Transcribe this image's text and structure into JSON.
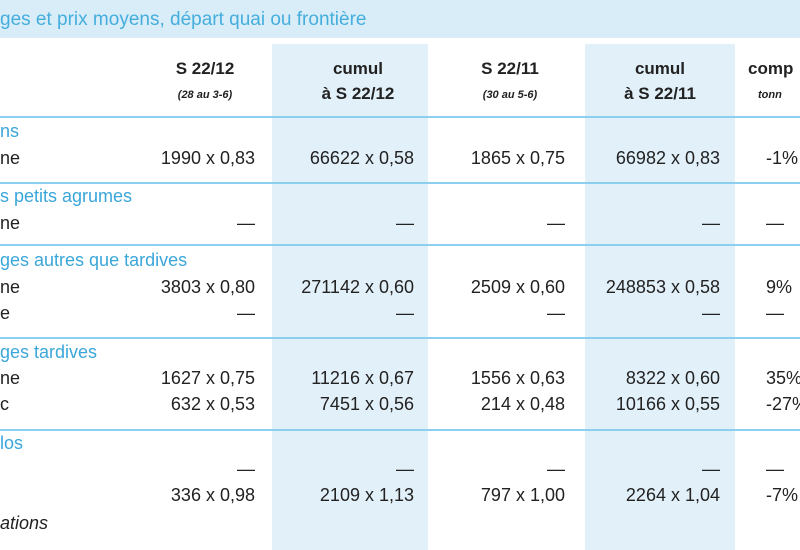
{
  "title": "ges et prix moyens, départ quai ou frontière",
  "headers": [
    {
      "lines": [
        "S 22/12",
        "(28 au 3-6)"
      ]
    },
    {
      "lines": [
        "cumul",
        "à S 22/12"
      ]
    },
    {
      "lines": [
        "S 22/11",
        "(30 au 5-6)"
      ]
    },
    {
      "lines": [
        "cumul",
        "à S 22/11"
      ]
    },
    {
      "lines": [
        "comp",
        "tonn"
      ]
    }
  ],
  "sections": [
    {
      "label": "ns",
      "rows": [
        {
          "label": "ne",
          "cells": [
            "1990 x 0,83",
            "66622 x 0,58",
            "1865 x 0,75",
            "66982 x 0,83",
            "-1%"
          ]
        }
      ]
    },
    {
      "label": "s petits agrumes",
      "rows": [
        {
          "label": "ne",
          "cells": [
            "—",
            "—",
            "—",
            "—",
            "—"
          ]
        }
      ]
    },
    {
      "label": "ges autres que tardives",
      "rows": [
        {
          "label": "ne",
          "cells": [
            "3803 x 0,80",
            "271142 x 0,60",
            "2509 x 0,60",
            "248853 x 0,58",
            "9%"
          ]
        },
        {
          "label": "e",
          "cells": [
            "—",
            "—",
            "—",
            "—",
            "—"
          ]
        }
      ]
    },
    {
      "label": "ges tardives",
      "rows": [
        {
          "label": "ne",
          "cells": [
            "1627 x 0,75",
            "11216 x 0,67",
            "1556 x 0,63",
            "8322 x 0,60",
            "35%"
          ]
        },
        {
          "label": "c",
          "cells": [
            "632 x 0,53",
            "7451 x 0,56",
            "214 x 0,48",
            "10166 x 0,55",
            "-27%"
          ]
        }
      ]
    },
    {
      "label": "los",
      "rows": [
        {
          "label": "",
          "cells": [
            "—",
            "—",
            "—",
            "—",
            "—"
          ]
        },
        {
          "label": "",
          "cells": [
            "336 x 0,98",
            "2109 x 1,13",
            "797 x 1,00",
            "2264 x 1,04",
            "-7%"
          ]
        }
      ]
    }
  ],
  "footnote": "ations"
}
